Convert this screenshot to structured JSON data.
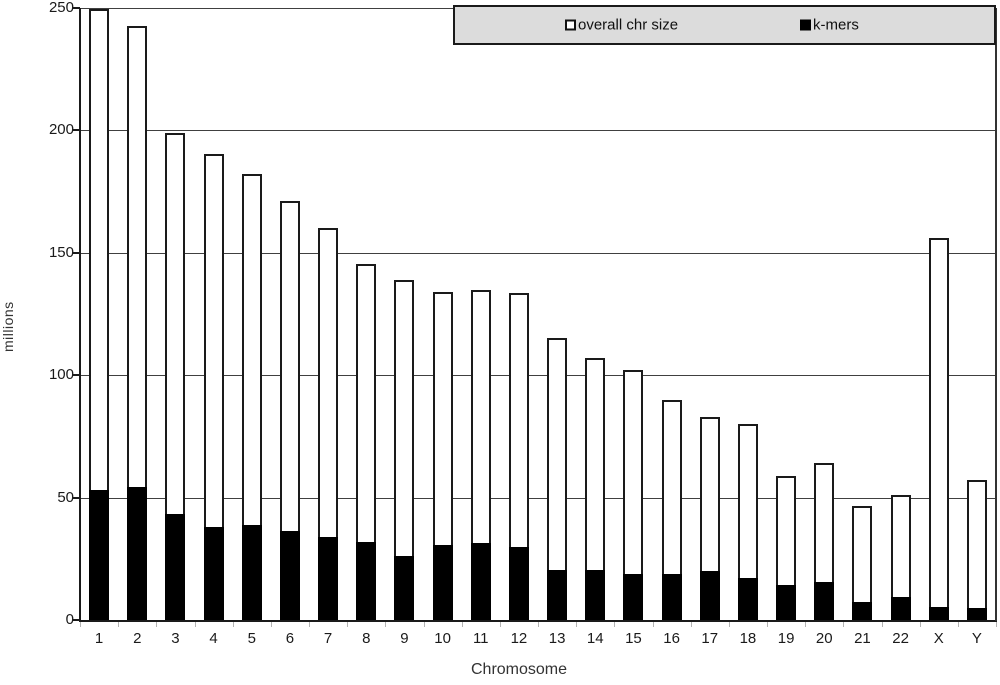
{
  "legend": {
    "items": [
      {
        "label": "overall chr size",
        "swatch": "white-square",
        "color": "#ffffff"
      },
      {
        "label": "k-mers",
        "swatch": "black-square",
        "color": "#000000"
      }
    ],
    "background": "#dcdcdc"
  },
  "axes": {
    "y_label": "millions",
    "x_label": "Chromosome",
    "y_ticks": [
      0,
      50,
      100,
      150,
      200,
      250
    ]
  },
  "colors": {
    "bar_fill": "#ffffff",
    "bar_stroke": "#1a1a1a",
    "kmer_fill": "#000000",
    "gridline": "#404040",
    "legend_background": "#dcdcdc"
  },
  "chart_data": {
    "type": "bar",
    "subtype": "overlaid",
    "title": "",
    "xlabel": "Chromosome",
    "ylabel": "millions",
    "ylim": [
      0,
      250
    ],
    "grid": true,
    "legend_position": "top-right",
    "categories": [
      "1",
      "2",
      "3",
      "4",
      "5",
      "6",
      "7",
      "8",
      "9",
      "10",
      "11",
      "12",
      "13",
      "14",
      "15",
      "16",
      "17",
      "18",
      "19",
      "20",
      "21",
      "22",
      "X",
      "Y"
    ],
    "series": [
      {
        "name": "overall chr size",
        "color": "#ffffff",
        "values": [
          249.5,
          242.5,
          199,
          190.5,
          182,
          171,
          160,
          145.5,
          139,
          134,
          135,
          133.5,
          115,
          107,
          102,
          90,
          83,
          80,
          59,
          64,
          46.5,
          51,
          156,
          57
        ]
      },
      {
        "name": "k-mers",
        "color": "#000000",
        "values": [
          53,
          54.5,
          43.5,
          38,
          39,
          36.5,
          34,
          32,
          26,
          30.5,
          31.5,
          30,
          20.5,
          20.5,
          19,
          19,
          20,
          17,
          14.5,
          15.5,
          7.5,
          9.5,
          5.5,
          5
        ]
      }
    ]
  }
}
